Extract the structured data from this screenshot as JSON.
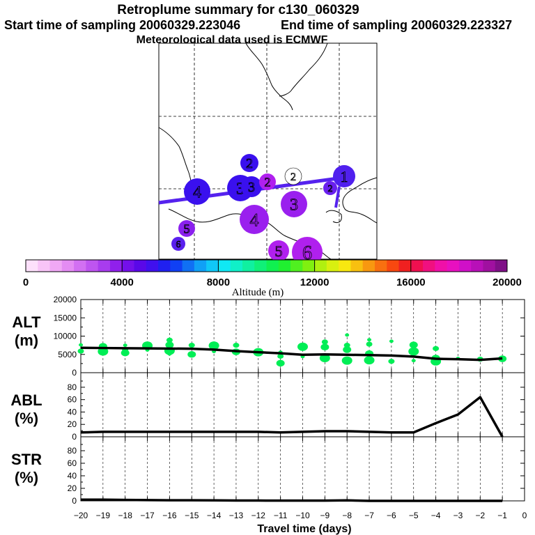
{
  "title": {
    "line1": "Retroplume summary for c130_060329",
    "start": "Start time of sampling 20060329.223046",
    "end": "End time of sampling 20060329.223327",
    "met": "Meteorological data used is ECMWF"
  },
  "colors": {
    "line": "#000000",
    "scatter": "#00ee55",
    "track": "#5522ee"
  },
  "map": {
    "plume_circles": [
      {
        "label": "2",
        "color": "#3a10ee"
      },
      {
        "label": "3",
        "color": "#3a10ee"
      },
      {
        "label": "4",
        "color": "#3a10ee"
      },
      {
        "label": "3",
        "color": "#3a10ee"
      },
      {
        "label": "2",
        "color": "#b020ee"
      },
      {
        "label": "2",
        "color": "#ffffff"
      },
      {
        "label": "1",
        "color": "#5020ee"
      },
      {
        "label": "2",
        "color": "#6a20ee"
      },
      {
        "label": "3",
        "color": "#9a20ee"
      },
      {
        "label": "4",
        "color": "#9a20ee"
      },
      {
        "label": "5",
        "color": "#8a20ee"
      },
      {
        "label": "6",
        "color": "#5a20ee"
      },
      {
        "label": "5",
        "color": "#b020ee"
      },
      {
        "label": "6",
        "color": "#b020ee"
      }
    ]
  },
  "colorbar": {
    "title": "Altitude (m)",
    "tick_labels": [
      "0",
      "4000",
      "8000",
      "12000",
      "16000",
      "20000"
    ],
    "colors": [
      "#fde0fb",
      "#f8c4f7",
      "#f0a8f5",
      "#e48cf3",
      "#d270f2",
      "#be55f0",
      "#a83cee",
      "#9020ec",
      "#7410ea",
      "#5a08e8",
      "#4010ee",
      "#2020f0",
      "#1040f4",
      "#1070f4",
      "#10a0f6",
      "#10c8f8",
      "#10e8f4",
      "#10f0c8",
      "#10f0a0",
      "#10f078",
      "#10f050",
      "#20f030",
      "#50f020",
      "#80f010",
      "#b0f010",
      "#d8f010",
      "#f8e810",
      "#f8c010",
      "#f89810",
      "#f87010",
      "#f84810",
      "#f02020",
      "#f01050",
      "#f01080",
      "#f010a8",
      "#e810c0",
      "#d010c8",
      "#b810b8",
      "#a010a0",
      "#801088"
    ]
  },
  "chart_data": [
    {
      "type": "line",
      "panel": "ALT",
      "ylabel": "ALT\n(m)",
      "ylim": [
        0,
        20000
      ],
      "yticks": [
        0,
        5000,
        10000,
        15000,
        20000
      ],
      "x": [
        -20,
        -19,
        -18,
        -17,
        -16,
        -15,
        -14,
        -13,
        -12,
        -11,
        -10,
        -9,
        -8,
        -7,
        -6,
        -5,
        -4,
        -3,
        -2,
        -1
      ],
      "median": [
        6800,
        6750,
        6700,
        6650,
        6600,
        6550,
        6300,
        5900,
        5600,
        5300,
        4900,
        5000,
        4900,
        4800,
        4700,
        4400,
        3800,
        3700,
        3500,
        3900
      ],
      "scatter": [
        {
          "x": -20,
          "y": 7600
        },
        {
          "x": -20,
          "y": 5900
        },
        {
          "x": -19,
          "y": 7200
        },
        {
          "x": -19,
          "y": 5800
        },
        {
          "x": -18,
          "y": 7500
        },
        {
          "x": -18,
          "y": 6200
        },
        {
          "x": -18,
          "y": 5400
        },
        {
          "x": -17,
          "y": 7400
        },
        {
          "x": -17,
          "y": 6200
        },
        {
          "x": -16,
          "y": 8900
        },
        {
          "x": -16,
          "y": 7600
        },
        {
          "x": -16,
          "y": 6000
        },
        {
          "x": -16,
          "y": 5100
        },
        {
          "x": -15,
          "y": 7500
        },
        {
          "x": -15,
          "y": 5000
        },
        {
          "x": -14,
          "y": 7400
        },
        {
          "x": -14,
          "y": 5800
        },
        {
          "x": -13,
          "y": 7500
        },
        {
          "x": -13,
          "y": 5700
        },
        {
          "x": -12,
          "y": 5600
        },
        {
          "x": -11,
          "y": 5600
        },
        {
          "x": -11,
          "y": 4500
        },
        {
          "x": -11,
          "y": 2600
        },
        {
          "x": -10,
          "y": 7100
        },
        {
          "x": -10,
          "y": 4400
        },
        {
          "x": -9,
          "y": 8400
        },
        {
          "x": -9,
          "y": 7000
        },
        {
          "x": -9,
          "y": 4000
        },
        {
          "x": -8,
          "y": 10300
        },
        {
          "x": -8,
          "y": 7500
        },
        {
          "x": -8,
          "y": 6300
        },
        {
          "x": -8,
          "y": 3300
        },
        {
          "x": -7,
          "y": 9000
        },
        {
          "x": -7,
          "y": 7800
        },
        {
          "x": -7,
          "y": 5200
        },
        {
          "x": -7,
          "y": 3400
        },
        {
          "x": -6,
          "y": 8600
        },
        {
          "x": -6,
          "y": 3100
        },
        {
          "x": -5,
          "y": 7600
        },
        {
          "x": -5,
          "y": 5800
        },
        {
          "x": -5,
          "y": 3300
        },
        {
          "x": -4,
          "y": 6600
        },
        {
          "x": -4,
          "y": 4000
        },
        {
          "x": -4,
          "y": 3100
        },
        {
          "x": -3,
          "y": 3900
        },
        {
          "x": -2,
          "y": 3700
        },
        {
          "x": -1,
          "y": 3800
        }
      ]
    },
    {
      "type": "line",
      "panel": "ABL",
      "ylabel": "ABL\n(%)",
      "ylim": [
        0,
        90
      ],
      "yticks": [
        0,
        20,
        40,
        60,
        80
      ],
      "x": [
        -20,
        -19,
        -18,
        -17,
        -16,
        -15,
        -14,
        -13,
        -12,
        -11,
        -10,
        -9,
        -8,
        -7,
        -6,
        -5,
        -4,
        -3,
        -2,
        -1
      ],
      "values": [
        7,
        8,
        8,
        8,
        8,
        8,
        8,
        8,
        8,
        7,
        8,
        9,
        9,
        8,
        7,
        7,
        22,
        36,
        64,
        0
      ]
    },
    {
      "type": "line",
      "panel": "STR",
      "ylabel": "STR\n(%)",
      "ylim": [
        0,
        90
      ],
      "yticks": [
        0,
        20,
        40,
        60,
        80
      ],
      "x": [
        -20,
        -19,
        -18,
        -17,
        -16,
        -15,
        -14,
        -13,
        -12,
        -11,
        -10,
        -9,
        -8,
        -7,
        -6,
        -5,
        -4,
        -3,
        -2,
        -1
      ],
      "values": [
        2,
        2,
        1.5,
        1.2,
        1,
        1,
        0.8,
        0.6,
        0.5,
        0.4,
        0.4,
        0.4,
        0.8,
        0,
        0,
        0,
        0,
        0,
        0,
        0
      ]
    }
  ],
  "xaxis": {
    "label": "Travel time (days)",
    "ticks": [
      -20,
      -19,
      -18,
      -17,
      -16,
      -15,
      -14,
      -13,
      -12,
      -11,
      -10,
      -9,
      -8,
      -7,
      -6,
      -5,
      -4,
      -3,
      -2,
      -1,
      0
    ],
    "xlim": [
      -20,
      0
    ]
  }
}
